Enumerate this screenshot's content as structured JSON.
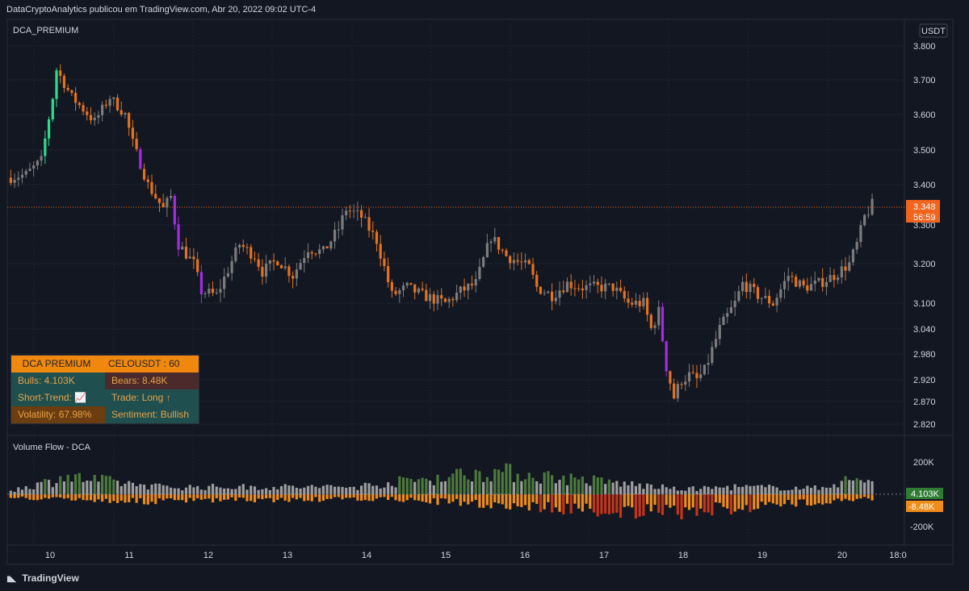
{
  "attribution": "DataCryptoAnalytics publicou em TradingView.com, Abr 20, 2022 09:02 UTC-4",
  "brand": "TradingView",
  "brand_icon": "tradingview-logo-icon",
  "main_pane_title": "DCA_PREMIUM",
  "volume_pane_title": "Volume Flow - DCA",
  "currency_label": "USDT",
  "colors": {
    "background": "#131722",
    "up": "#7c7c7c",
    "down": "#e4731f",
    "strong_up": "#2fdc8c",
    "strong_down": "#a32de0",
    "vol_pos": "#9e9e9e",
    "vol_neg": "#f08c1a",
    "price_tag": "#f0641e",
    "bull_tag": "#2e7d32",
    "bear_tag": "#f08c1a"
  },
  "price_tag": {
    "value": "3.348",
    "countdown": "56:59"
  },
  "volume_tags": {
    "bull": "4.103K",
    "bear": "-8.48K"
  },
  "info_panel": {
    "header_left": "DCA PREMIUM",
    "header_right": "CELOUSDT : 60",
    "bulls": "Bulls: 4.103K",
    "bears": "Bears: 8.48K",
    "short_trend": "Short-Trend: 📈",
    "trade": "Trade: Long ↑",
    "volatility": "Volatility: 67.98%",
    "sentiment": "Sentiment: Bullish"
  },
  "chart_data": [
    {
      "type": "candlestick",
      "title": "DCA_PREMIUM",
      "symbol": "CELOUSDT",
      "interval": "60",
      "currency": "USDT",
      "x_tick_labels": [
        "10",
        "11",
        "12",
        "13",
        "14",
        "15",
        "16",
        "17",
        "18",
        "19",
        "20",
        "18:0"
      ],
      "y_tick_labels": [
        "3.800",
        "3.700",
        "3.600",
        "3.500",
        "3.400",
        "3.300",
        "3.200",
        "3.100",
        "3.040",
        "2.980",
        "2.920",
        "2.870",
        "2.820"
      ],
      "y_tick_values": [
        3.8,
        3.7,
        3.6,
        3.5,
        3.4,
        3.3,
        3.2,
        3.1,
        3.04,
        2.98,
        2.92,
        2.87,
        2.82
      ],
      "last_price": 3.348,
      "grid": true,
      "close_path": [
        [
          0,
          3.42
        ],
        [
          4,
          3.43
        ],
        [
          8,
          3.47
        ],
        [
          11,
          3.65
        ],
        [
          12,
          3.73
        ],
        [
          16,
          3.65
        ],
        [
          22,
          3.58
        ],
        [
          26,
          3.65
        ],
        [
          30,
          3.6
        ],
        [
          32,
          3.52
        ],
        [
          36,
          3.4
        ],
        [
          40,
          3.34
        ],
        [
          42,
          3.37
        ],
        [
          44,
          3.25
        ],
        [
          48,
          3.2
        ],
        [
          50,
          3.13
        ],
        [
          54,
          3.12
        ],
        [
          60,
          3.25
        ],
        [
          64,
          3.22
        ],
        [
          66,
          3.18
        ],
        [
          70,
          3.21
        ],
        [
          74,
          3.17
        ],
        [
          78,
          3.24
        ],
        [
          82,
          3.23
        ],
        [
          86,
          3.29
        ],
        [
          88,
          3.34
        ],
        [
          92,
          3.32
        ],
        [
          96,
          3.26
        ],
        [
          100,
          3.12
        ],
        [
          104,
          3.14
        ],
        [
          108,
          3.12
        ],
        [
          114,
          3.1
        ],
        [
          118,
          3.13
        ],
        [
          122,
          3.15
        ],
        [
          126,
          3.27
        ],
        [
          130,
          3.22
        ],
        [
          136,
          3.19
        ],
        [
          138,
          3.14
        ],
        [
          142,
          3.12
        ],
        [
          146,
          3.15
        ],
        [
          150,
          3.14
        ],
        [
          154,
          3.14
        ],
        [
          158,
          3.14
        ],
        [
          162,
          3.1
        ],
        [
          166,
          3.1
        ],
        [
          168,
          3.04
        ],
        [
          170,
          3.08
        ],
        [
          172,
          2.95
        ],
        [
          174,
          2.88
        ],
        [
          176,
          2.92
        ],
        [
          178,
          2.93
        ],
        [
          180,
          2.92
        ],
        [
          182,
          2.94
        ],
        [
          186,
          3.04
        ],
        [
          190,
          3.1
        ],
        [
          192,
          3.15
        ],
        [
          196,
          3.12
        ],
        [
          200,
          3.1
        ],
        [
          204,
          3.17
        ],
        [
          208,
          3.14
        ],
        [
          212,
          3.15
        ],
        [
          216,
          3.17
        ],
        [
          220,
          3.2
        ],
        [
          222,
          3.25
        ],
        [
          224,
          3.32
        ],
        [
          226,
          3.35
        ]
      ]
    },
    {
      "type": "bar",
      "title": "Volume Flow - DCA",
      "y_tick_labels": [
        "200K",
        "-200K"
      ],
      "y_tick_values": [
        200000,
        -200000
      ],
      "last_bull": 4103,
      "last_bear": -8480,
      "bull_series_profile": [
        [
          0,
          30000
        ],
        [
          11,
          110000
        ],
        [
          12,
          150000
        ],
        [
          40,
          60000
        ],
        [
          90,
          60000
        ],
        [
          126,
          190000
        ],
        [
          170,
          60000
        ],
        [
          175,
          40000
        ],
        [
          190,
          60000
        ],
        [
          212,
          50000
        ],
        [
          218,
          110000
        ],
        [
          226,
          120000
        ]
      ],
      "bear_series_profile": [
        [
          0,
          -30000
        ],
        [
          36,
          -60000
        ],
        [
          50,
          -50000
        ],
        [
          100,
          -40000
        ],
        [
          170,
          -160000
        ],
        [
          205,
          -80000
        ],
        [
          220,
          -40000
        ]
      ]
    }
  ]
}
